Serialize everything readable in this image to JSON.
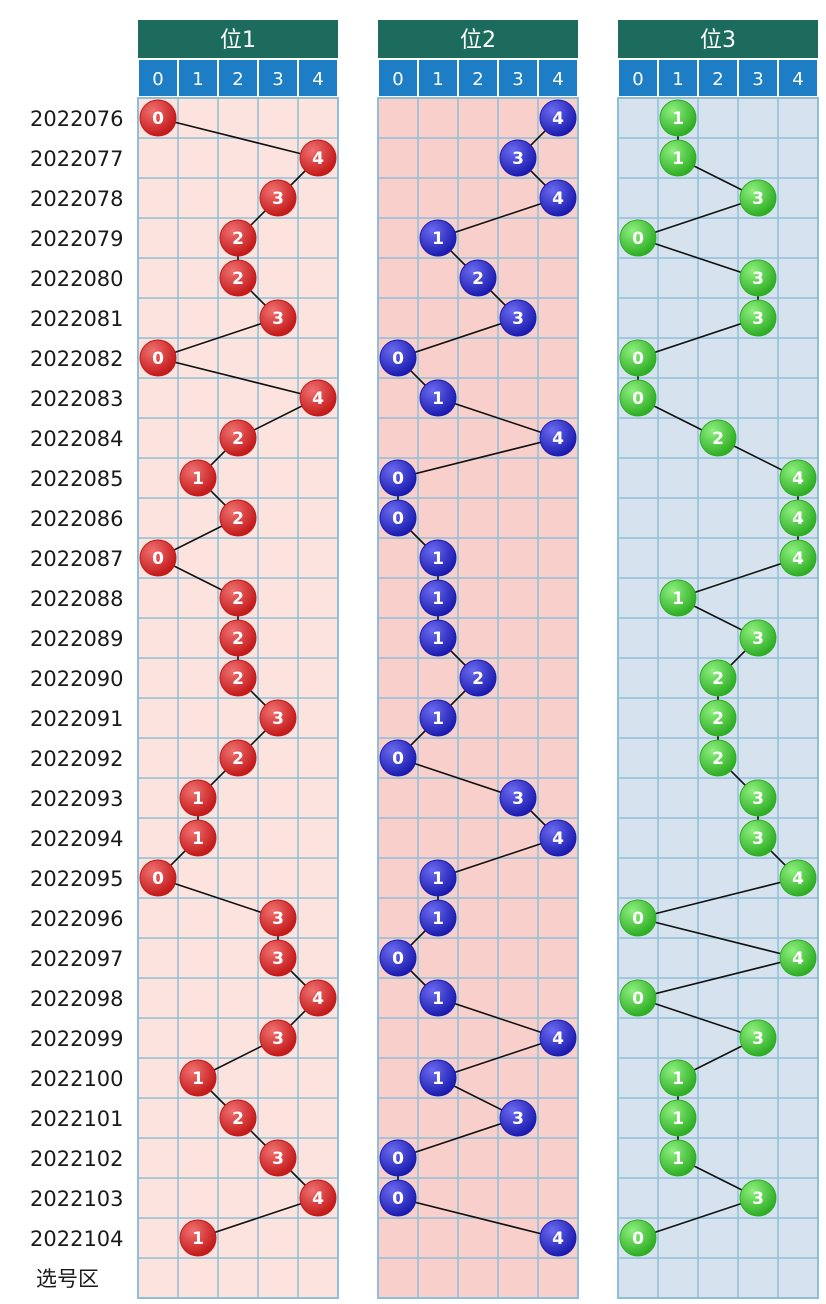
{
  "chart_data": {
    "type": "scatter",
    "title": "",
    "footer_label": "选号区",
    "digits": [
      "0",
      "1",
      "2",
      "3",
      "4"
    ],
    "periods": [
      "2022076",
      "2022077",
      "2022078",
      "2022079",
      "2022080",
      "2022081",
      "2022082",
      "2022083",
      "2022084",
      "2022085",
      "2022086",
      "2022087",
      "2022088",
      "2022089",
      "2022090",
      "2022091",
      "2022092",
      "2022093",
      "2022094",
      "2022095",
      "2022096",
      "2022097",
      "2022098",
      "2022099",
      "2022100",
      "2022101",
      "2022102",
      "2022103",
      "2022104"
    ],
    "series": [
      {
        "name": "位1",
        "color": "#c41a1a",
        "highlight": "#f07070",
        "background": "#fde3de",
        "values": [
          0,
          4,
          3,
          2,
          2,
          3,
          0,
          4,
          2,
          1,
          2,
          0,
          2,
          2,
          2,
          3,
          2,
          1,
          1,
          0,
          3,
          3,
          4,
          3,
          1,
          2,
          3,
          4,
          1
        ]
      },
      {
        "name": "位2",
        "color": "#1c1cb0",
        "highlight": "#6a6af0",
        "background": "#f9cfcc",
        "values": [
          4,
          3,
          4,
          1,
          2,
          3,
          0,
          1,
          4,
          0,
          0,
          1,
          1,
          1,
          2,
          1,
          0,
          3,
          4,
          1,
          1,
          0,
          1,
          4,
          1,
          3,
          0,
          0,
          4
        ]
      },
      {
        "name": "位3",
        "color": "#2fae25",
        "highlight": "#8ef07e",
        "background": "#d6e3ee",
        "values": [
          1,
          1,
          3,
          0,
          3,
          3,
          0,
          0,
          2,
          4,
          4,
          4,
          1,
          3,
          2,
          2,
          2,
          3,
          3,
          4,
          0,
          4,
          0,
          3,
          1,
          1,
          1,
          3,
          0
        ]
      }
    ],
    "colors": {
      "header_bg": "#1d6b5c",
      "digit_header_bg": "#1d7ec6",
      "grid_line": "#8fbfd6",
      "connector": "#111111"
    }
  }
}
